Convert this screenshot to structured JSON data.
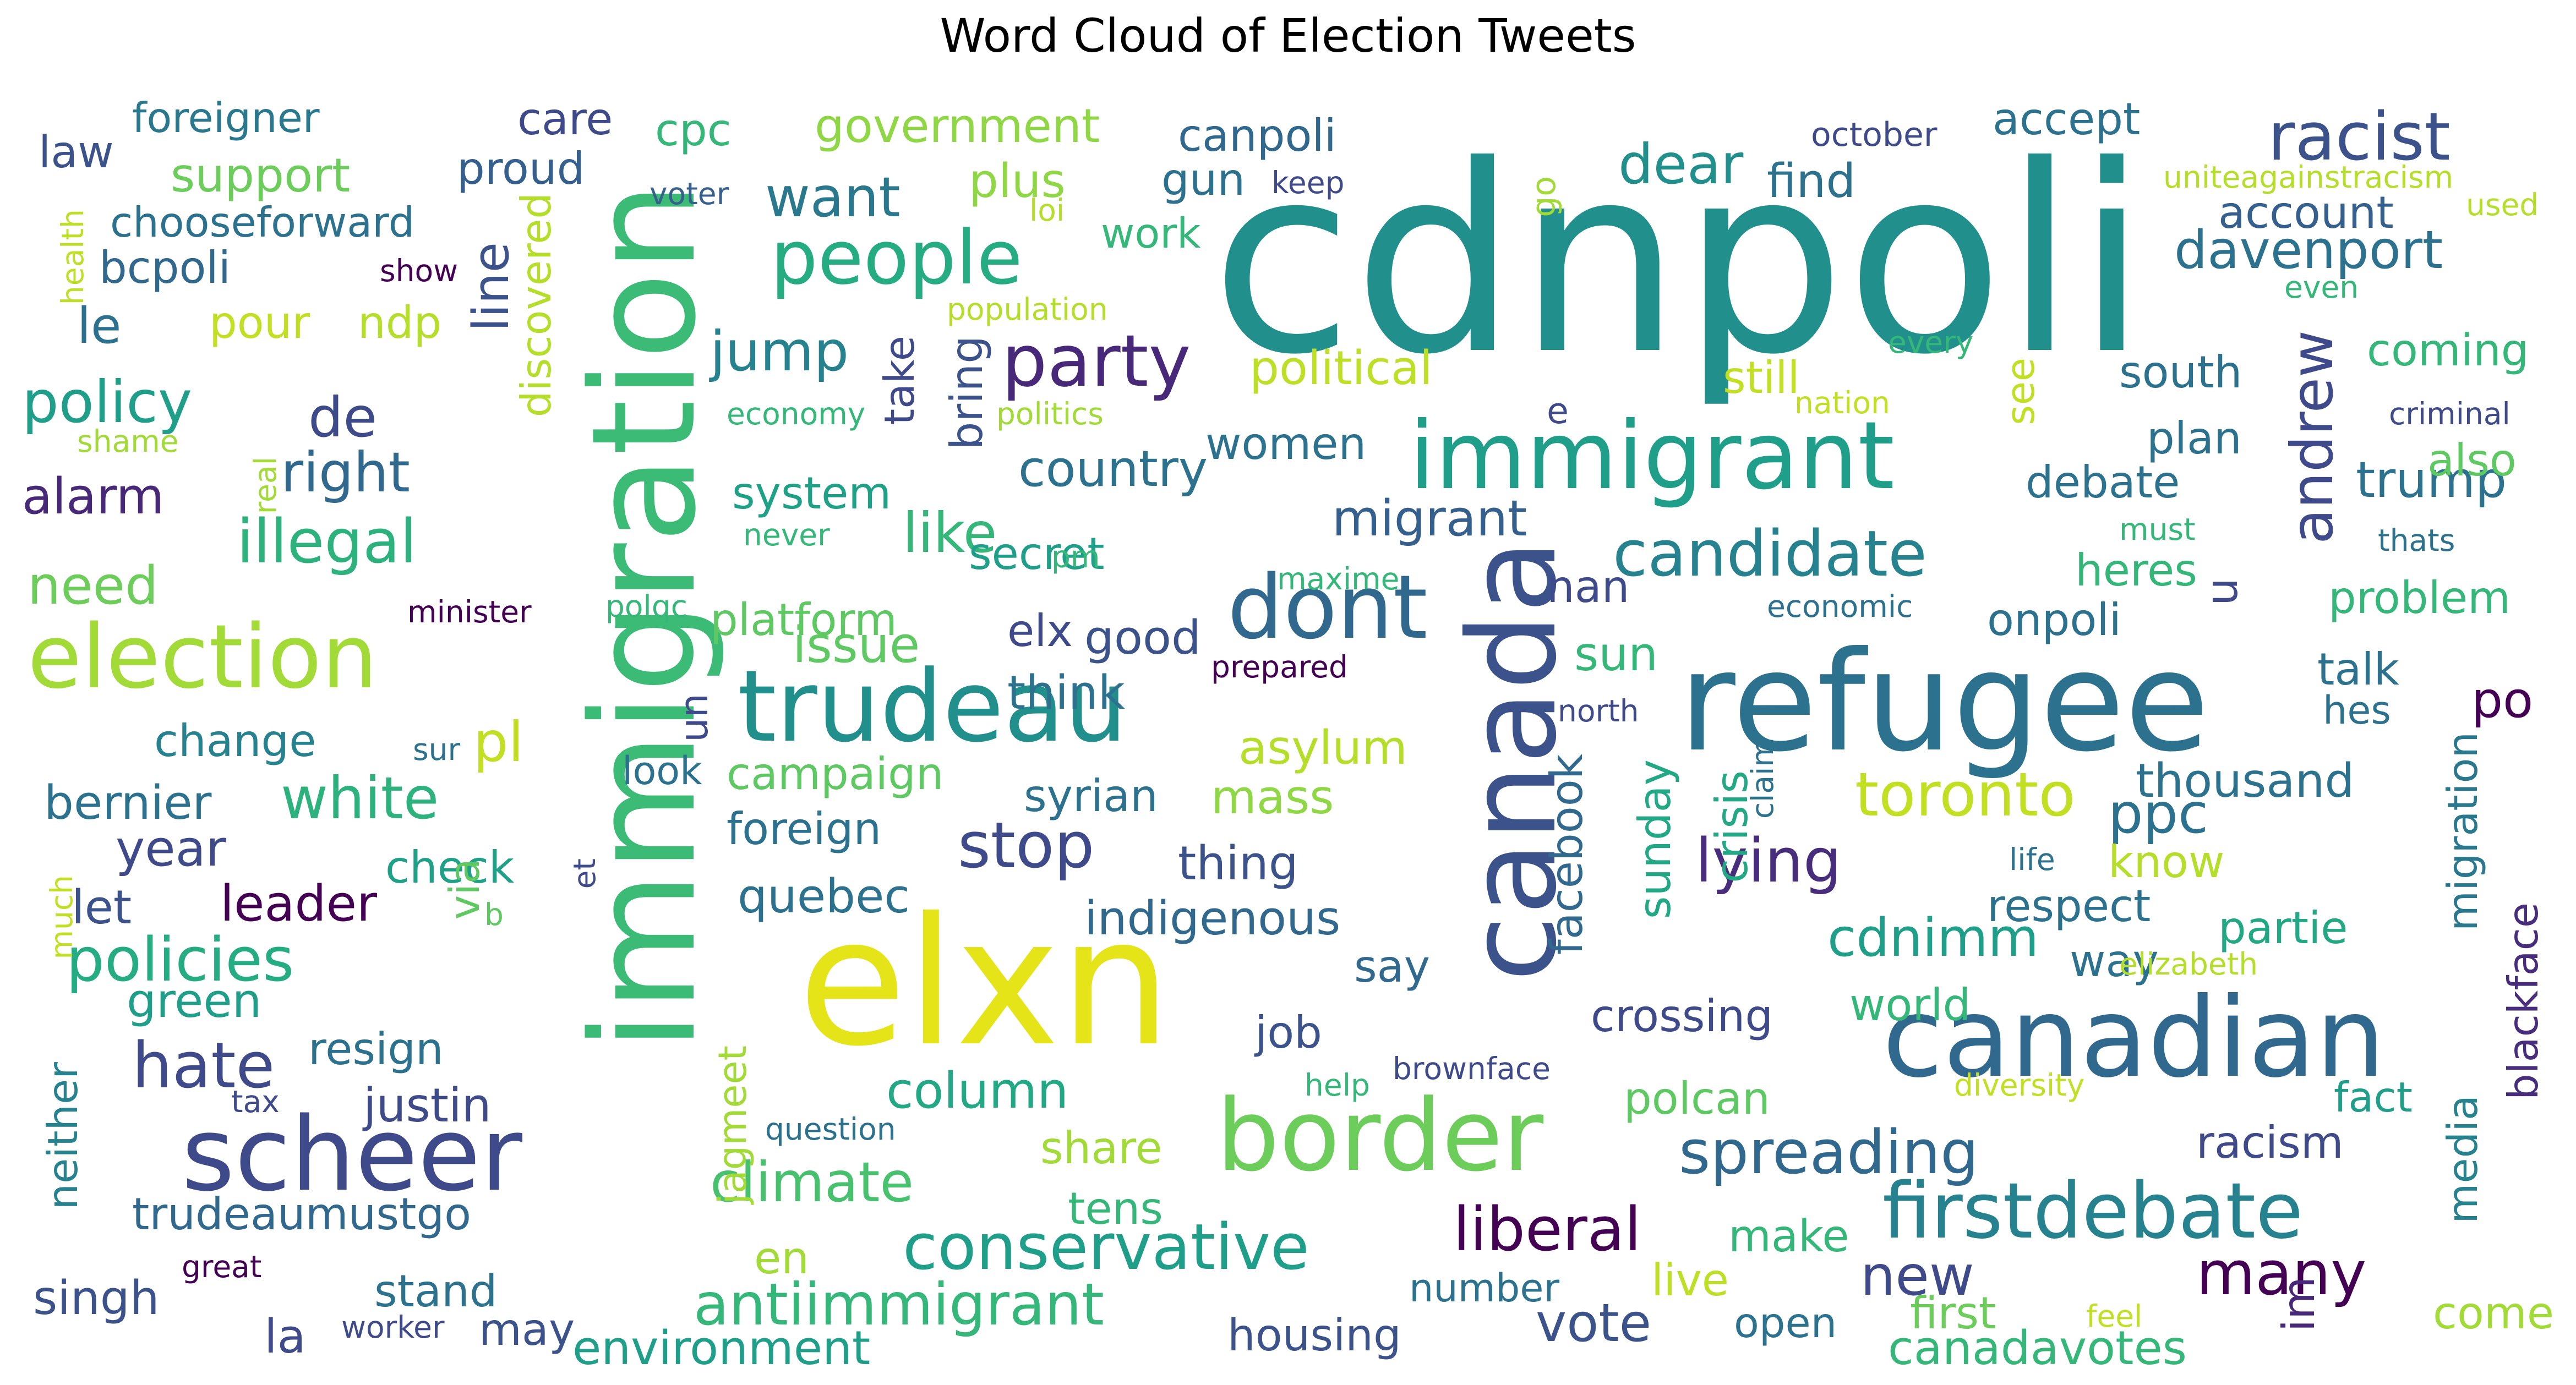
{
  "chart_data": {
    "type": "wordcloud",
    "title": "Word Cloud of Election Tweets",
    "words": [
      {
        "text": "cdnpoli",
        "color": "#21908d"
      },
      {
        "text": "immigration",
        "color": "#3bbb75"
      },
      {
        "text": "elxn",
        "color": "#e5e419"
      },
      {
        "text": "refugee",
        "color": "#2c728e"
      },
      {
        "text": "canada",
        "color": "#3b528b"
      },
      {
        "text": "canadian",
        "color": "#31688e"
      },
      {
        "text": "trudeau",
        "color": "#21908d"
      },
      {
        "text": "immigrant",
        "color": "#1f9e89"
      },
      {
        "text": "border",
        "color": "#6ccd5a"
      },
      {
        "text": "scheer",
        "color": "#3e4a89"
      },
      {
        "text": "election",
        "color": "#a2da37"
      },
      {
        "text": "firstdebate",
        "color": "#26828e"
      },
      {
        "text": "dont",
        "color": "#31688e"
      },
      {
        "text": "people",
        "color": "#25ac82"
      },
      {
        "text": "conservative",
        "color": "#1f9e89"
      },
      {
        "text": "racist",
        "color": "#3b528b"
      },
      {
        "text": "party",
        "color": "#482878"
      },
      {
        "text": "andrew",
        "color": "#3e4a89"
      },
      {
        "text": "many",
        "color": "#440154"
      },
      {
        "text": "liberal",
        "color": "#440154"
      },
      {
        "text": "candidate",
        "color": "#26828e"
      },
      {
        "text": "policies",
        "color": "#25ac82"
      },
      {
        "text": "antiimmigrant",
        "color": "#35b779"
      },
      {
        "text": "spreading",
        "color": "#31688e"
      },
      {
        "text": "stop",
        "color": "#3e4a89"
      },
      {
        "text": "toronto",
        "color": "#c2df23"
      },
      {
        "text": "lying",
        "color": "#472d7b"
      },
      {
        "text": "illegal",
        "color": "#2db27d"
      },
      {
        "text": "hate",
        "color": "#3e4a89"
      },
      {
        "text": "white",
        "color": "#2db27d"
      },
      {
        "text": "policy",
        "color": "#1f9e89"
      },
      {
        "text": "right",
        "color": "#31688e"
      },
      {
        "text": "davenport",
        "color": "#2c728e"
      },
      {
        "text": "ppc",
        "color": "#2c728e"
      },
      {
        "text": "new",
        "color": "#3e4a89"
      },
      {
        "text": "vote",
        "color": "#3b528b"
      },
      {
        "text": "climate",
        "color": "#48c16e"
      },
      {
        "text": "want",
        "color": "#2a788e"
      },
      {
        "text": "jump",
        "color": "#26828e"
      },
      {
        "text": "migrant",
        "color": "#355f8d"
      },
      {
        "text": "dear",
        "color": "#21908d"
      },
      {
        "text": "trump",
        "color": "#2c728e"
      },
      {
        "text": "government",
        "color": "#8fd744"
      },
      {
        "text": "support",
        "color": "#6ccd5a"
      },
      {
        "text": "facebook",
        "color": "#31688e"
      },
      {
        "text": "migration",
        "color": "#2a788e"
      },
      {
        "text": "blackface",
        "color": "#472d7b"
      },
      {
        "text": "issue",
        "color": "#5ec962"
      },
      {
        "text": "country",
        "color": "#2c728e"
      },
      {
        "text": "discovered",
        "color": "#b5de2b"
      },
      {
        "text": "line",
        "color": "#3b528b"
      },
      {
        "text": "de",
        "color": "#3e4a89"
      },
      {
        "text": "like",
        "color": "#35b779"
      },
      {
        "text": "alarm",
        "color": "#482878"
      },
      {
        "text": "need",
        "color": "#6ccd5a"
      },
      {
        "text": "column",
        "color": "#22a884"
      },
      {
        "text": "cdnimm",
        "color": "#1f9e89"
      },
      {
        "text": "crossing",
        "color": "#3e4a89"
      },
      {
        "text": "green",
        "color": "#1f9e89"
      },
      {
        "text": "justin",
        "color": "#3e4a89"
      },
      {
        "text": "trudeaumustgo",
        "color": "#31688e"
      },
      {
        "text": "indigenous",
        "color": "#31688e"
      },
      {
        "text": "sunday",
        "color": "#22a884"
      },
      {
        "text": "crisis",
        "color": "#22a884"
      },
      {
        "text": "secret",
        "color": "#1f9e89"
      },
      {
        "text": "system",
        "color": "#1fa187"
      },
      {
        "text": "political",
        "color": "#bddf26"
      },
      {
        "text": "platform",
        "color": "#5ec962"
      },
      {
        "text": "bring",
        "color": "#3b528b"
      },
      {
        "text": "take",
        "color": "#3e4a89"
      },
      {
        "text": "women",
        "color": "#2c728e"
      },
      {
        "text": "good",
        "color": "#3b528b"
      },
      {
        "text": "elx",
        "color": "#3e4a89"
      },
      {
        "text": "think",
        "color": "#2c728e"
      },
      {
        "text": "asylum",
        "color": "#b5de2b"
      },
      {
        "text": "pl",
        "color": "#c2df23"
      },
      {
        "text": "change",
        "color": "#26828e"
      },
      {
        "text": "bernier",
        "color": "#2c728e"
      },
      {
        "text": "year",
        "color": "#3e4a89"
      },
      {
        "text": "check",
        "color": "#1fa187"
      },
      {
        "text": "leader",
        "color": "#440154"
      },
      {
        "text": "let",
        "color": "#3b528b"
      },
      {
        "text": "via",
        "color": "#5ec962"
      },
      {
        "text": "foreign",
        "color": "#2c728e"
      },
      {
        "text": "campaign",
        "color": "#5ec962"
      },
      {
        "text": "quebec",
        "color": "#2c728e"
      },
      {
        "text": "syrian",
        "color": "#2c728e"
      },
      {
        "text": "mass",
        "color": "#8fd744"
      },
      {
        "text": "thing",
        "color": "#3b528b"
      },
      {
        "text": "say",
        "color": "#31688e"
      },
      {
        "text": "job",
        "color": "#3b528b"
      },
      {
        "text": "resign",
        "color": "#2c728e"
      },
      {
        "text": "singh",
        "color": "#3b528b"
      },
      {
        "text": "la",
        "color": "#3e4a89"
      },
      {
        "text": "may",
        "color": "#3b528b"
      },
      {
        "text": "stand",
        "color": "#2c728e"
      },
      {
        "text": "environment",
        "color": "#1f9e89"
      },
      {
        "text": "housing",
        "color": "#3b528b"
      },
      {
        "text": "share",
        "color": "#a2da37"
      },
      {
        "text": "tens",
        "color": "#35b779"
      },
      {
        "text": "en",
        "color": "#a2da37"
      },
      {
        "text": "jagmeet",
        "color": "#a2da37"
      },
      {
        "text": "neither",
        "color": "#26828e"
      },
      {
        "text": "canpoli",
        "color": "#31688e"
      },
      {
        "text": "plus",
        "color": "#8fd744"
      },
      {
        "text": "gun",
        "color": "#2c728e"
      },
      {
        "text": "work",
        "color": "#35b779"
      },
      {
        "text": "cpc",
        "color": "#35b779"
      },
      {
        "text": "care",
        "color": "#3e4a89"
      },
      {
        "text": "proud",
        "color": "#355f8d"
      },
      {
        "text": "foreigner",
        "color": "#2a788e"
      },
      {
        "text": "law",
        "color": "#3b528b"
      },
      {
        "text": "chooseforward",
        "color": "#2c728e"
      },
      {
        "text": "bcpoli",
        "color": "#31688e"
      },
      {
        "text": "le",
        "color": "#2c728e"
      },
      {
        "text": "pour",
        "color": "#c2df23"
      },
      {
        "text": "ndp",
        "color": "#b5de2b"
      },
      {
        "text": "accept",
        "color": "#2c728e"
      },
      {
        "text": "find",
        "color": "#2c728e"
      },
      {
        "text": "account",
        "color": "#355f8d"
      },
      {
        "text": "south",
        "color": "#2c728e"
      },
      {
        "text": "plan",
        "color": "#2c728e"
      },
      {
        "text": "debate",
        "color": "#2c728e"
      },
      {
        "text": "heres",
        "color": "#35b779"
      },
      {
        "text": "onpoli",
        "color": "#2c728e"
      },
      {
        "text": "talk",
        "color": "#2c728e"
      },
      {
        "text": "hes",
        "color": "#2c728e"
      },
      {
        "text": "po",
        "color": "#440154"
      },
      {
        "text": "thousand",
        "color": "#2c728e"
      },
      {
        "text": "know",
        "color": "#b5de2b"
      },
      {
        "text": "respect",
        "color": "#2c728e"
      },
      {
        "text": "way",
        "color": "#2c728e"
      },
      {
        "text": "partie",
        "color": "#22a884"
      },
      {
        "text": "world",
        "color": "#35b779"
      },
      {
        "text": "polcan",
        "color": "#5ec962"
      },
      {
        "text": "racism",
        "color": "#3e4a89"
      },
      {
        "text": "make",
        "color": "#35b779"
      },
      {
        "text": "open",
        "color": "#2c728e"
      },
      {
        "text": "live",
        "color": "#bddf26"
      },
      {
        "text": "first",
        "color": "#6ccd5a"
      },
      {
        "text": "canadavotes",
        "color": "#35b779"
      },
      {
        "text": "im",
        "color": "#482878"
      },
      {
        "text": "come",
        "color": "#a2da37"
      },
      {
        "text": "coming",
        "color": "#35b779"
      },
      {
        "text": "also",
        "color": "#5ec962"
      },
      {
        "text": "problem",
        "color": "#35b779"
      },
      {
        "text": "fact",
        "color": "#1f9e89"
      },
      {
        "text": "media",
        "color": "#26828e"
      },
      {
        "text": "still",
        "color": "#c2df23"
      },
      {
        "text": "see",
        "color": "#c2df23"
      },
      {
        "text": "sun",
        "color": "#35b779"
      },
      {
        "text": "nan",
        "color": "#3e4a89"
      },
      {
        "text": "un",
        "color": "#3e4a89"
      },
      {
        "text": "u",
        "color": "#3e4a89"
      },
      {
        "text": "look",
        "color": "#2c728e"
      },
      {
        "text": "go",
        "color": "#a2da37"
      },
      {
        "text": "e",
        "color": "#3e4a89"
      },
      {
        "text": "october",
        "color": "#3e4a89"
      },
      {
        "text": "keep",
        "color": "#3e4a89"
      },
      {
        "text": "voter",
        "color": "#355f8d"
      },
      {
        "text": "loi",
        "color": "#b5de2b"
      },
      {
        "text": "population",
        "color": "#b5de2b"
      },
      {
        "text": "uniteagainstracism",
        "color": "#b5de2b"
      },
      {
        "text": "used",
        "color": "#b5de2b"
      },
      {
        "text": "even",
        "color": "#35b779"
      },
      {
        "text": "every",
        "color": "#35b779"
      },
      {
        "text": "nation",
        "color": "#c2df23"
      },
      {
        "text": "criminal",
        "color": "#3e4a89"
      },
      {
        "text": "economy",
        "color": "#35b779"
      },
      {
        "text": "politics",
        "color": "#a2da37"
      },
      {
        "text": "health",
        "color": "#bddf26"
      },
      {
        "text": "shame",
        "color": "#a2da37"
      },
      {
        "text": "show",
        "color": "#440154"
      },
      {
        "text": "real",
        "color": "#a2da37"
      },
      {
        "text": "never",
        "color": "#35b779"
      },
      {
        "text": "pm",
        "color": "#35b779"
      },
      {
        "text": "maxime",
        "color": "#35b779"
      },
      {
        "text": "minister",
        "color": "#440154"
      },
      {
        "text": "polqc",
        "color": "#35b779"
      },
      {
        "text": "economic",
        "color": "#2c728e"
      },
      {
        "text": "must",
        "color": "#35b779"
      },
      {
        "text": "thats",
        "color": "#2c728e"
      },
      {
        "text": "prepared",
        "color": "#440154"
      },
      {
        "text": "north",
        "color": "#3e4a89"
      },
      {
        "text": "sur",
        "color": "#2c728e"
      },
      {
        "text": "claim",
        "color": "#2c728e"
      },
      {
        "text": "life",
        "color": "#2c728e"
      },
      {
        "text": "et",
        "color": "#3e4a89"
      },
      {
        "text": "b",
        "color": "#5ec962"
      },
      {
        "text": "much",
        "color": "#c2df23"
      },
      {
        "text": "tax",
        "color": "#3e4a89"
      },
      {
        "text": "question",
        "color": "#2c728e"
      },
      {
        "text": "brownface",
        "color": "#3e4a89"
      },
      {
        "text": "help",
        "color": "#35b779"
      },
      {
        "text": "diversity",
        "color": "#c2df23"
      },
      {
        "text": "elizabeth",
        "color": "#b5de2b"
      },
      {
        "text": "number",
        "color": "#2c728e"
      },
      {
        "text": "great",
        "color": "#440154"
      },
      {
        "text": "worker",
        "color": "#3e4a89"
      },
      {
        "text": "feel",
        "color": "#c2df23"
      }
    ]
  }
}
